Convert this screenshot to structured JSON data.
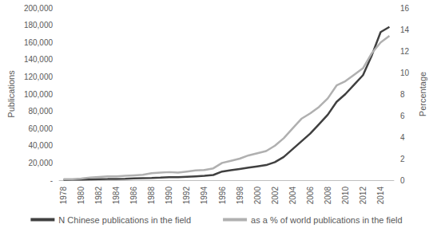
{
  "chart_data": {
    "type": "line",
    "categories": [
      1978,
      null,
      1980,
      null,
      1982,
      null,
      1984,
      null,
      1986,
      null,
      1988,
      null,
      1990,
      null,
      1992,
      null,
      1994,
      null,
      1996,
      null,
      1998,
      null,
      2000,
      null,
      2002,
      null,
      2004,
      null,
      2006,
      null,
      2008,
      null,
      2010,
      null,
      2012,
      null,
      2014,
      null
    ],
    "y_label": "Publications",
    "y2_label": "Percentage",
    "ylim": [
      0,
      200000
    ],
    "yticks": [
      {
        "value": 0,
        "label": "-"
      },
      {
        "value": 20000,
        "label": "20,000"
      },
      {
        "value": 40000,
        "label": "40,000"
      },
      {
        "value": 60000,
        "label": "60,000"
      },
      {
        "value": 80000,
        "label": "80,000"
      },
      {
        "value": 100000,
        "label": "100,000"
      },
      {
        "value": 120000,
        "label": "120,000"
      },
      {
        "value": 140000,
        "label": "140,000"
      },
      {
        "value": 160000,
        "label": "160,000"
      },
      {
        "value": 180000,
        "label": "180,000"
      },
      {
        "value": 200000,
        "label": "200,000"
      }
    ],
    "y2lim": [
      0,
      16
    ],
    "y2ticks": [
      0,
      2,
      4,
      6,
      8,
      10,
      12,
      14,
      16
    ],
    "grid": false,
    "legend": "bottom",
    "series": [
      {
        "name": "N Chinese publications in the field",
        "color": "#404040",
        "values": [
          500,
          600,
          800,
          1000,
          1200,
          1300,
          1500,
          1700,
          2000,
          2300,
          2600,
          3000,
          3500,
          3500,
          4000,
          4500,
          5000,
          6000,
          10000,
          11500,
          13000,
          14500,
          16000,
          17500,
          21000,
          27000,
          36000,
          45000,
          54000,
          65000,
          76000,
          91000,
          100000,
          111000,
          122000,
          145000,
          172000,
          178000
        ]
      },
      {
        "name": "as a % of world publications in the field",
        "color": "#b0b0b0",
        "axis": "y2",
        "values": [
          0.1,
          0.1,
          0.15,
          0.25,
          0.3,
          0.35,
          0.35,
          0.4,
          0.45,
          0.5,
          0.65,
          0.7,
          0.75,
          0.7,
          0.8,
          0.9,
          0.95,
          1.1,
          1.6,
          1.8,
          2.0,
          2.3,
          2.5,
          2.7,
          3.2,
          3.9,
          4.8,
          5.7,
          6.2,
          6.8,
          7.6,
          8.8,
          9.2,
          9.8,
          10.4,
          11.8,
          12.8,
          13.4
        ]
      }
    ]
  }
}
